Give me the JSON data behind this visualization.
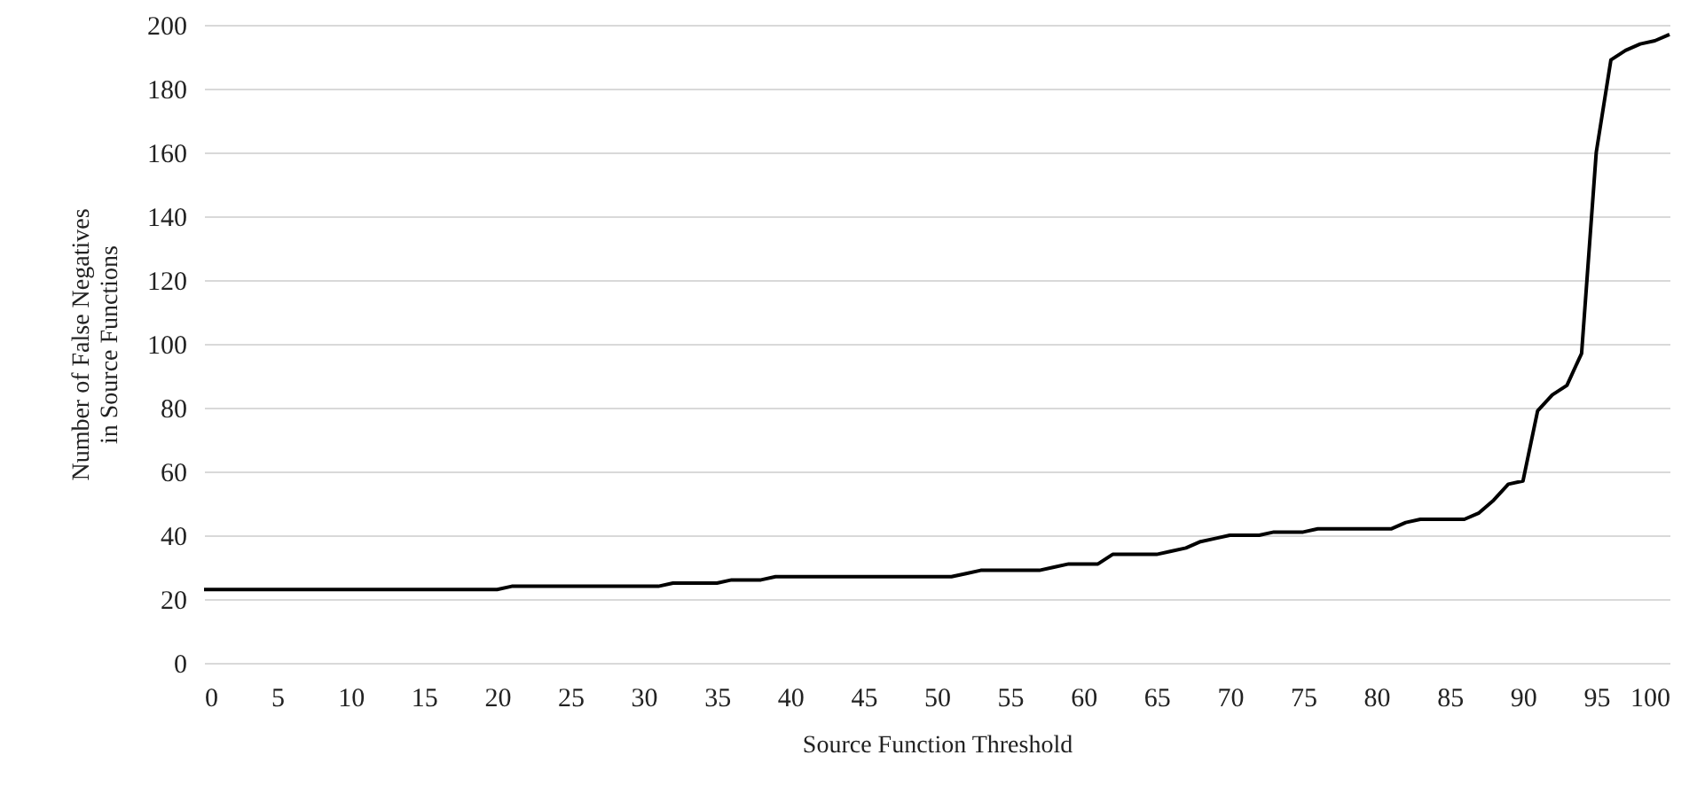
{
  "chart_data": {
    "type": "line",
    "xlabel": "Source Function Threshold",
    "ylabel": "Number of False Negatives\nin Source Functions",
    "x": [
      0,
      1,
      2,
      3,
      4,
      5,
      6,
      7,
      8,
      9,
      10,
      11,
      12,
      13,
      14,
      15,
      16,
      17,
      18,
      19,
      20,
      21,
      22,
      23,
      24,
      25,
      26,
      27,
      28,
      29,
      30,
      31,
      32,
      33,
      34,
      35,
      36,
      37,
      38,
      39,
      40,
      41,
      42,
      43,
      44,
      45,
      46,
      47,
      48,
      49,
      50,
      51,
      52,
      53,
      54,
      55,
      56,
      57,
      58,
      59,
      60,
      61,
      62,
      63,
      64,
      65,
      66,
      67,
      68,
      69,
      70,
      71,
      72,
      73,
      74,
      75,
      76,
      77,
      78,
      79,
      80,
      81,
      82,
      83,
      84,
      85,
      86,
      87,
      88,
      89,
      90,
      91,
      92,
      93,
      94,
      95,
      96,
      97,
      98,
      99,
      100
    ],
    "series": [
      {
        "color": "#000000",
        "values": [
          23,
          23,
          23,
          23,
          23,
          23,
          23,
          23,
          23,
          23,
          23,
          23,
          23,
          23,
          23,
          23,
          23,
          23,
          23,
          23,
          23,
          24,
          24,
          24,
          24,
          24,
          24,
          24,
          24,
          24,
          24,
          24,
          25,
          25,
          25,
          25,
          26,
          26,
          26,
          27,
          27,
          27,
          27,
          27,
          27,
          27,
          27,
          27,
          27,
          27,
          27,
          27,
          28,
          29,
          29,
          29,
          29,
          29,
          30,
          31,
          31,
          31,
          34,
          34,
          34,
          34,
          35,
          36,
          38,
          39,
          40,
          40,
          40,
          41,
          41,
          41,
          42,
          42,
          42,
          42,
          42,
          42,
          44,
          45,
          45,
          45,
          45,
          47,
          51,
          56,
          57,
          79,
          84,
          87,
          97,
          160,
          189,
          192,
          194,
          195,
          197
        ]
      }
    ],
    "xlim": [
      0,
      100
    ],
    "xticks": [
      0,
      5,
      10,
      15,
      20,
      25,
      30,
      35,
      40,
      45,
      50,
      55,
      60,
      65,
      70,
      75,
      80,
      85,
      90,
      95,
      100
    ],
    "ylim": [
      0,
      200
    ],
    "yticks": [
      0,
      20,
      40,
      60,
      80,
      100,
      120,
      140,
      160,
      180,
      200
    ],
    "grid": "y",
    "marker": "none",
    "line_style": "solid"
  }
}
